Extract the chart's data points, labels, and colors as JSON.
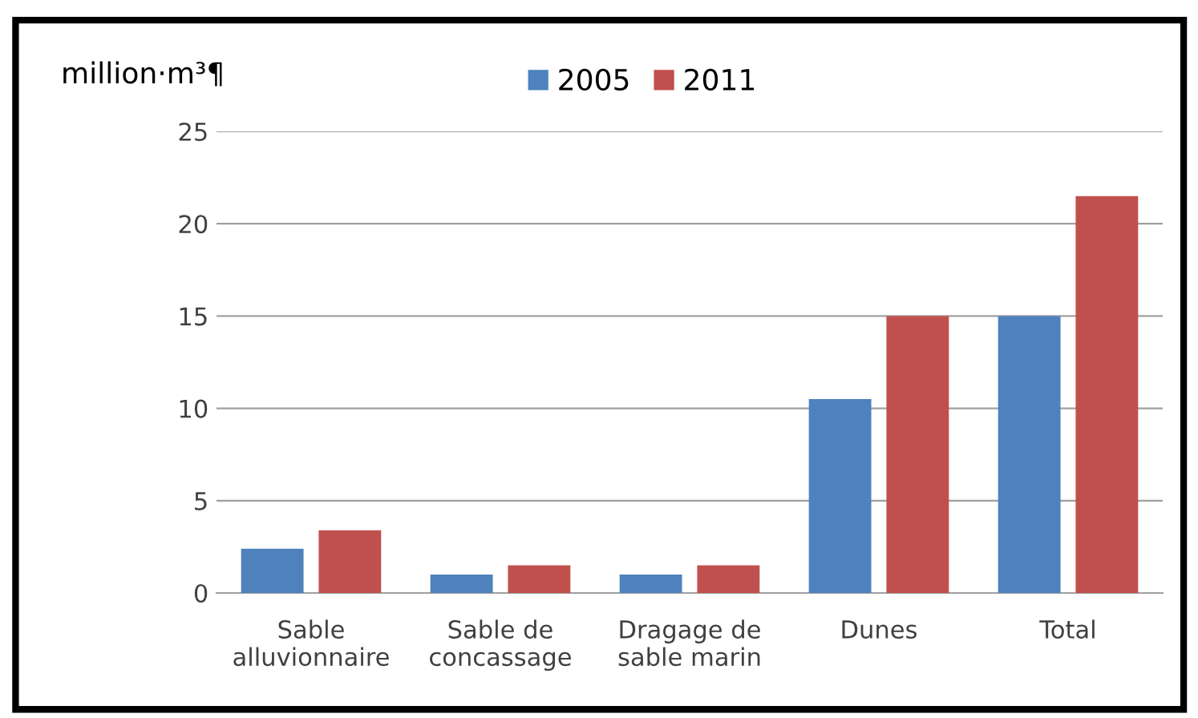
{
  "chart_data": {
    "type": "bar",
    "ylabel": "million·m³¶",
    "categories": [
      "Sable\nalluvionnaire",
      "Sable de\nconcassage",
      "Dragage de\nsable marin",
      "Dunes",
      "Total"
    ],
    "series": [
      {
        "name": "2005",
        "color": "#4f81bd",
        "values": [
          2.4,
          1.0,
          1.0,
          10.5,
          15.0
        ]
      },
      {
        "name": "2011",
        "color": "#c0504d",
        "values": [
          3.4,
          1.5,
          1.5,
          15.0,
          21.5
        ]
      }
    ],
    "ylim": [
      0,
      25
    ],
    "yticks": [
      0,
      5,
      10,
      15,
      20,
      25
    ],
    "grid": "y",
    "legend": "top"
  }
}
